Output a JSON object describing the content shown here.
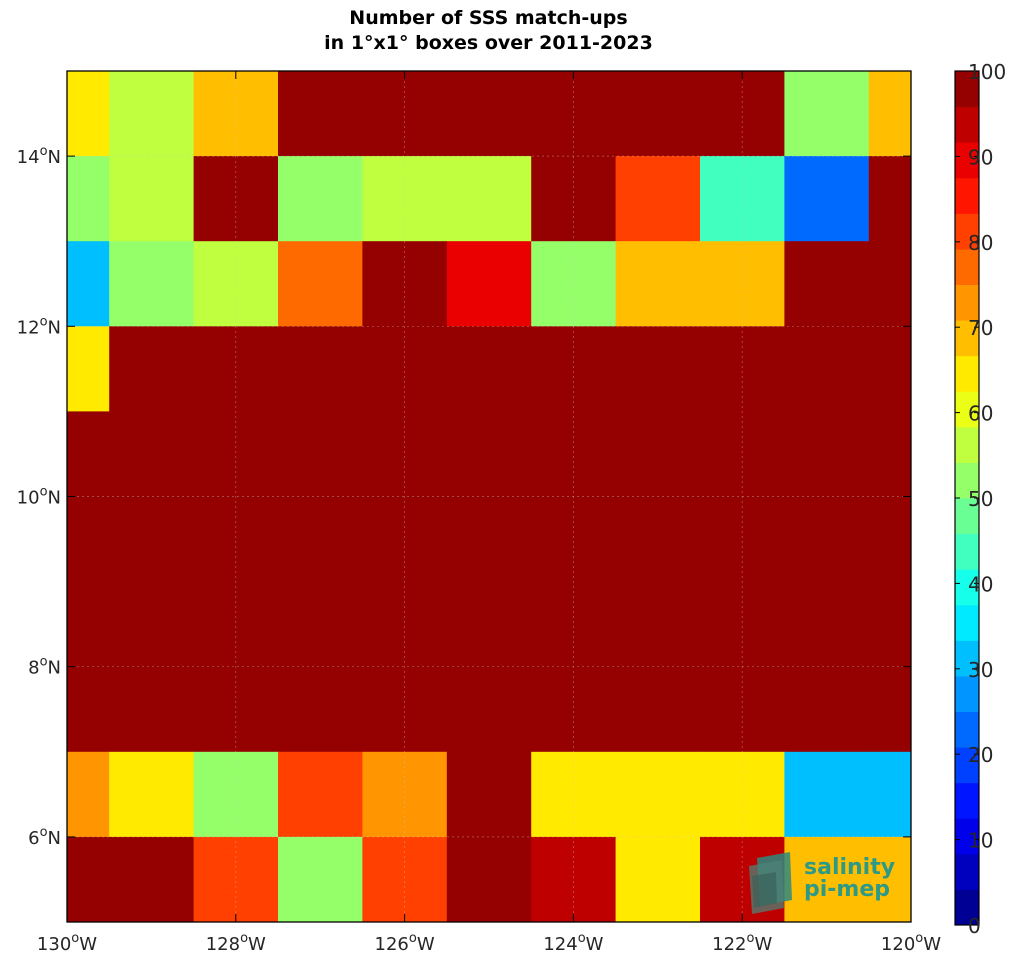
{
  "chart_data": {
    "type": "heatmap",
    "title": "Number of SSS match-ups",
    "subtitle": "in 1°x1° boxes over 2011-2023",
    "x_ticks": [
      "130°W",
      "128°W",
      "126°W",
      "124°W",
      "122°W",
      "120°W"
    ],
    "y_ticks": [
      "6°N",
      "8°N",
      "10°N",
      "12°N",
      "14°N"
    ],
    "xlim": [
      -130,
      -120
    ],
    "ylim": [
      5,
      15
    ],
    "colorbar": {
      "ticks": [
        "0",
        "10",
        "20",
        "30",
        "40",
        "50",
        "60",
        "70",
        "80",
        "90",
        "100"
      ],
      "range": [
        0,
        100
      ],
      "levels": 24,
      "colormap": "jet"
    },
    "cell_values_north_to_south": [
      [
        63,
        57,
        68,
        100,
        100,
        100,
        100,
        100,
        100,
        52,
        68
      ],
      [
        50,
        57,
        100,
        52,
        57,
        57,
        100,
        83,
        44,
        23,
        100
      ],
      [
        32,
        50,
        57,
        78,
        100,
        88,
        50,
        68,
        68,
        100,
        100
      ],
      [
        63,
        100,
        100,
        100,
        100,
        100,
        100,
        100,
        100,
        100,
        100
      ],
      [
        100,
        100,
        100,
        100,
        100,
        100,
        100,
        100,
        100,
        100,
        100
      ],
      [
        100,
        100,
        100,
        100,
        100,
        100,
        100,
        100,
        100,
        100,
        100
      ],
      [
        100,
        100,
        100,
        100,
        100,
        100,
        100,
        100,
        100,
        100,
        100
      ],
      [
        100,
        100,
        100,
        100,
        100,
        100,
        100,
        100,
        100,
        100,
        100
      ],
      [
        73,
        63,
        52,
        83,
        73,
        100,
        63,
        63,
        63,
        32,
        32
      ],
      [
        100,
        100,
        83,
        52,
        83,
        100,
        93,
        63,
        93,
        68,
        68
      ]
    ],
    "logo": {
      "line1": "salinity",
      "line2": "pi-mep",
      "color": "#2e9a86"
    }
  }
}
